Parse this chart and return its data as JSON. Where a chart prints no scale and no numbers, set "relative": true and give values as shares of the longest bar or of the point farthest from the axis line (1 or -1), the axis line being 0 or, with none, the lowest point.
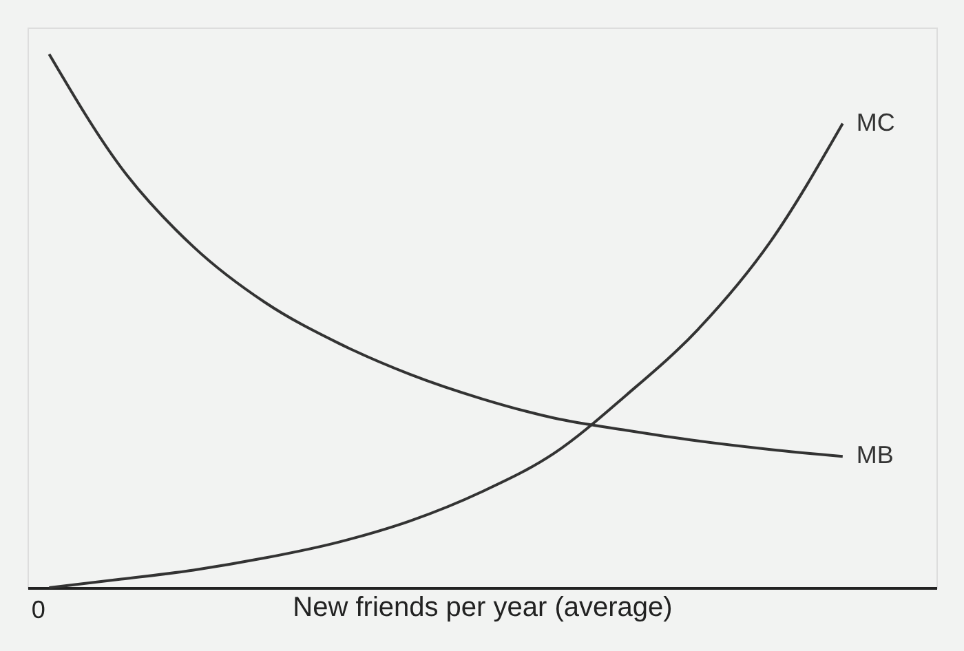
{
  "chart_data": {
    "type": "line",
    "relative": true,
    "xlabel": "New friends per year (average)",
    "annotations": [
      "0"
    ],
    "categories": [
      null,
      null,
      null,
      null,
      null,
      null,
      null,
      null,
      null,
      null,
      null,
      null
    ],
    "series": [
      {
        "name": "MC",
        "color": "#333333",
        "values": [
          0.0,
          0.016,
          0.033,
          0.056,
          0.085,
          0.125,
          0.18,
          0.252,
          0.361,
          0.485,
          0.649,
          0.87
        ]
      },
      {
        "name": "MB",
        "color": "#333333",
        "values": [
          1.0,
          0.787,
          0.639,
          0.534,
          0.459,
          0.4,
          0.354,
          0.318,
          0.295,
          0.275,
          0.259,
          0.246
        ]
      }
    ]
  }
}
